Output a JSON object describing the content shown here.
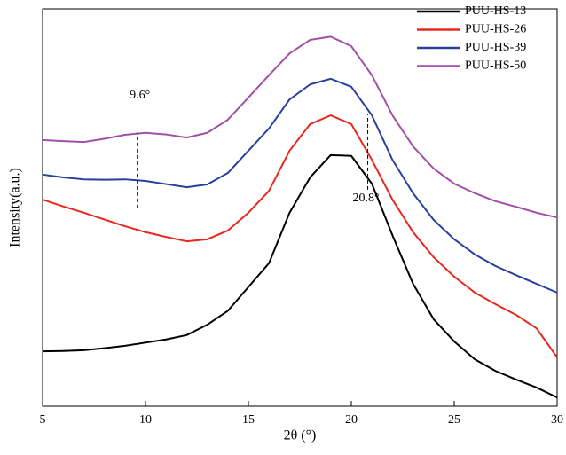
{
  "chart_data": {
    "type": "line",
    "x_label": "2θ (°)",
    "y_label": "Intensity(a.u.)",
    "x": [
      5,
      6,
      7,
      8,
      9,
      10,
      11,
      12,
      13,
      14,
      15,
      16,
      17,
      18,
      19,
      20,
      21,
      22,
      23,
      24,
      25,
      26,
      27,
      28,
      29,
      30
    ],
    "series": [
      {
        "name": "PUU-HS-13",
        "color": "#000000",
        "values": [
          13.8,
          13.9,
          14.1,
          14.6,
          15.2,
          16,
          16.8,
          17.9,
          20.5,
          24,
          30,
          36,
          48.7,
          57.6,
          63.2,
          63,
          56,
          43,
          30.8,
          21.9,
          16.3,
          11.8,
          8.9,
          6.7,
          4.7,
          2.2
        ]
      },
      {
        "name": "PUU-HS-26",
        "color": "#e8281e",
        "values": [
          52,
          50.3,
          48.7,
          47,
          45.3,
          43.8,
          42.6,
          41.5,
          42,
          44.2,
          48.7,
          54.2,
          64.3,
          71,
          73.2,
          71,
          62,
          52,
          43.8,
          37.5,
          32.6,
          28.6,
          25.7,
          23,
          19.6,
          12.3
        ]
      },
      {
        "name": "PUU-HS-39",
        "color": "#2a3f9e",
        "values": [
          58.3,
          57.6,
          57.1,
          57,
          57.1,
          56.7,
          55.9,
          55.1,
          55.8,
          58.7,
          64.3,
          69.9,
          77.2,
          81,
          82.4,
          80.4,
          73.2,
          62,
          53.6,
          46.9,
          42,
          38.2,
          35.3,
          33,
          30.8,
          28.6
        ]
      },
      {
        "name": "PUU-HS-50",
        "color": "#a24fa8",
        "values": [
          67,
          66.7,
          66.5,
          67.3,
          68.3,
          68.8,
          68.4,
          67.6,
          68.8,
          72.1,
          77.7,
          83.3,
          88.8,
          92.2,
          93,
          90.6,
          83.3,
          73.2,
          65.4,
          59.8,
          56,
          53.6,
          51.6,
          50.2,
          48.7,
          47.5
        ]
      }
    ],
    "xlim": [
      5,
      30
    ],
    "xticks": [
      5,
      10,
      15,
      20,
      25,
      30
    ],
    "ylim": [
      0,
      100
    ],
    "legend": "upper right",
    "annotations": [
      {
        "text": "9.6°",
        "x": 9.6,
        "y": [
          49.8,
          68.8
        ]
      },
      {
        "text": "20.8°",
        "x": 20.8,
        "y": [
          54.5,
          73.5
        ]
      }
    ]
  }
}
